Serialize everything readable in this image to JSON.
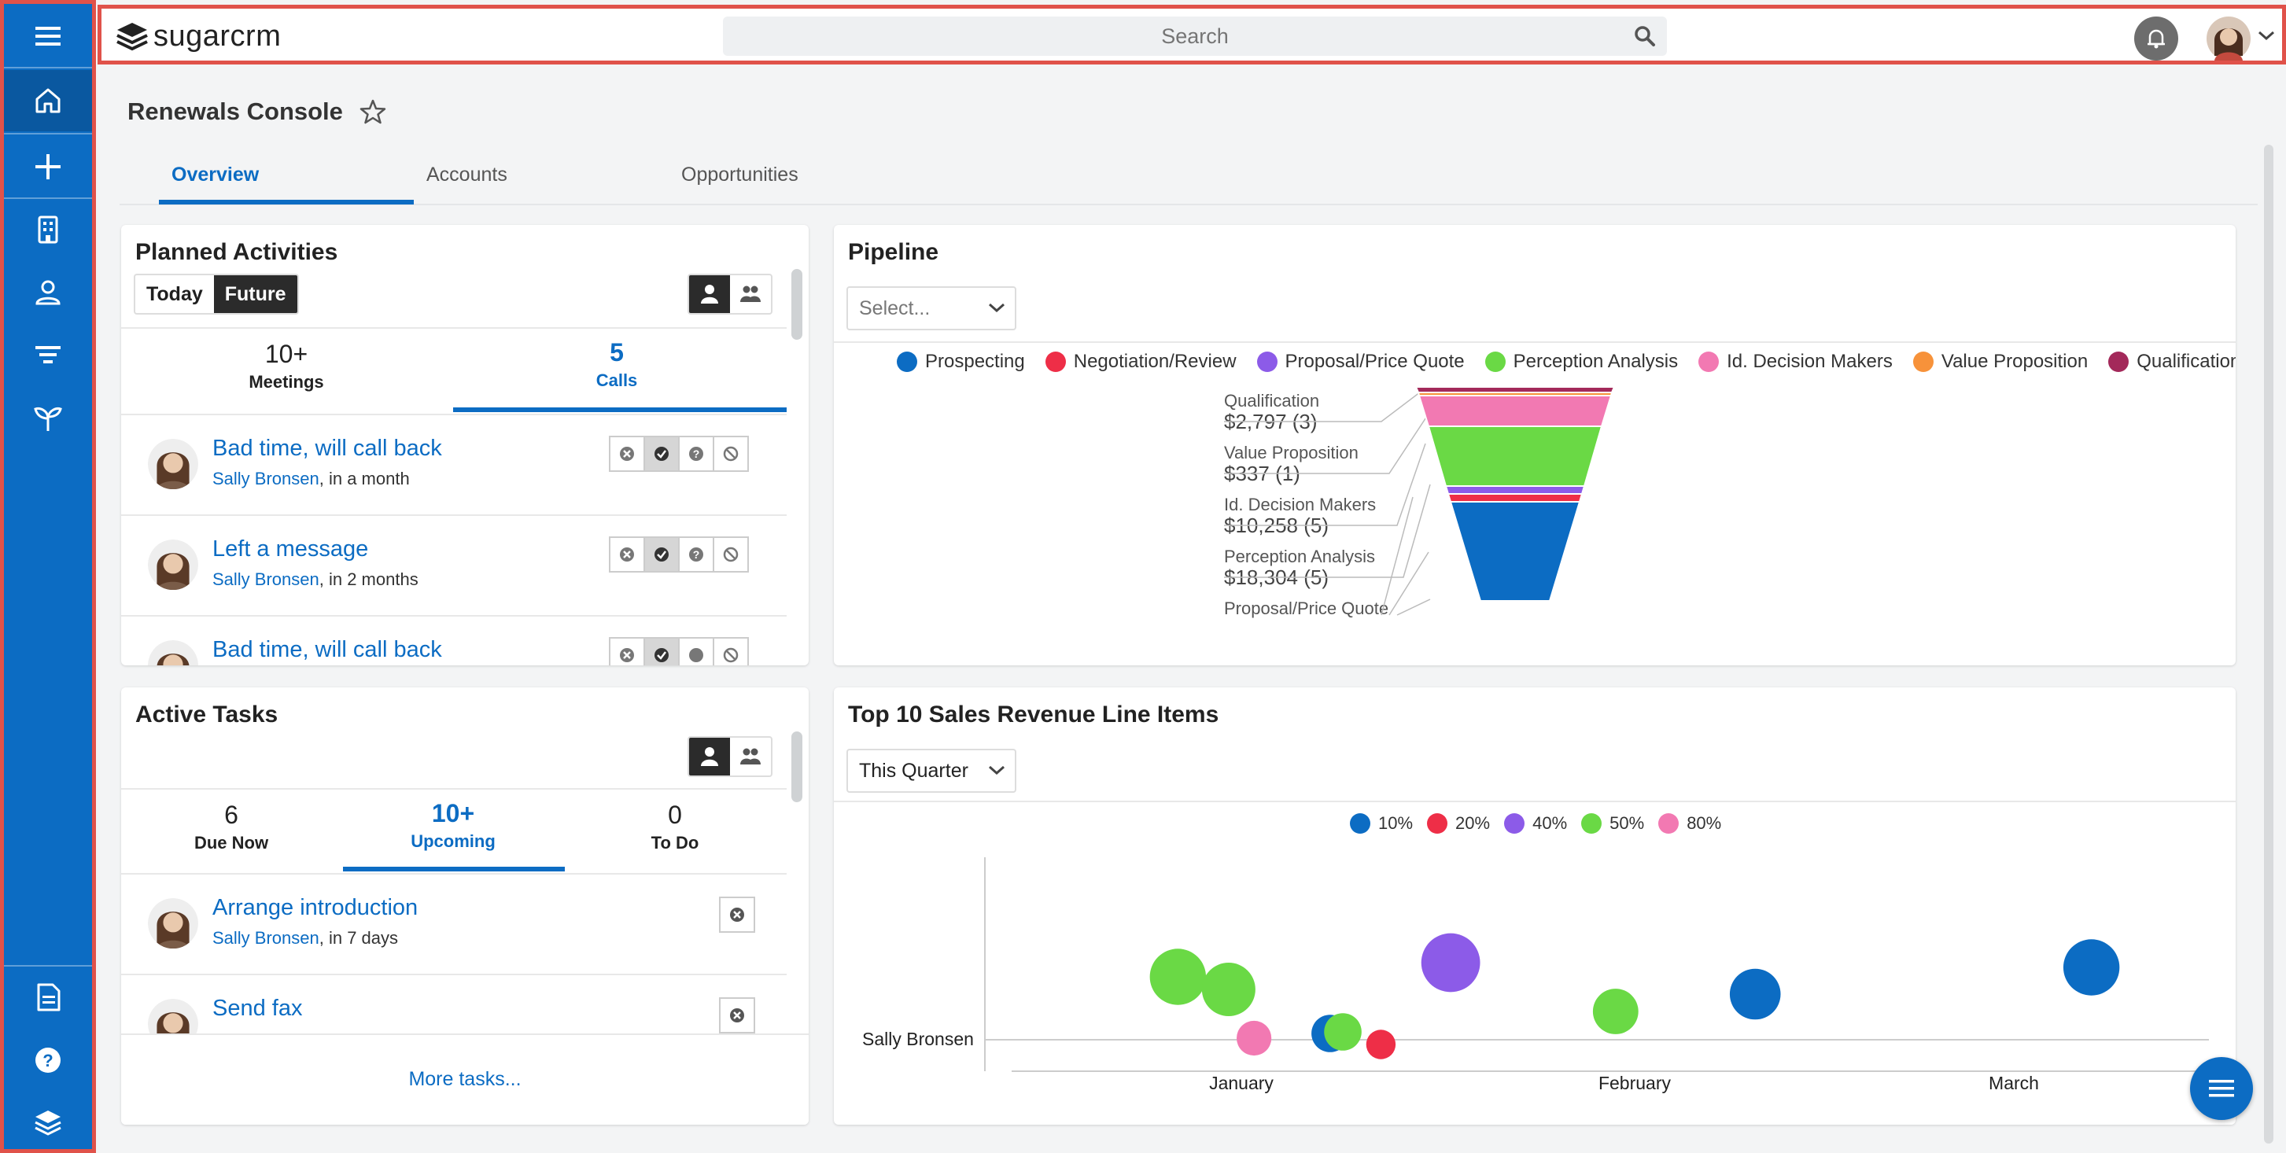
{
  "app": {
    "logo_text": "sugarcrm"
  },
  "search": {
    "placeholder": "Search"
  },
  "sidebar": {
    "items": [
      {
        "icon": "menu-icon"
      },
      {
        "icon": "home-icon"
      },
      {
        "icon": "plus-icon"
      },
      {
        "icon": "building-icon"
      },
      {
        "icon": "contact-icon"
      },
      {
        "icon": "filter-icon"
      },
      {
        "icon": "sprout-icon"
      },
      {
        "icon": "document-icon"
      },
      {
        "icon": "help-icon"
      },
      {
        "icon": "layers-icon"
      }
    ]
  },
  "page": {
    "title": "Renewals Console"
  },
  "tabs": [
    {
      "label": "Overview",
      "active": true
    },
    {
      "label": "Accounts"
    },
    {
      "label": "Opportunities"
    }
  ],
  "planned": {
    "title": "Planned Activities",
    "toggle": [
      "Today",
      "Future"
    ],
    "counters": [
      {
        "num": "10+",
        "label": "Meetings"
      },
      {
        "num": "5",
        "label": "Calls"
      }
    ],
    "rows": [
      {
        "title": "Bad time, will call back",
        "contact": "Sally Bronsen",
        "when": ", in a month"
      },
      {
        "title": "Left a message",
        "contact": "Sally Bronsen",
        "when": ", in 2 months"
      },
      {
        "title": "Bad time, will call back"
      }
    ]
  },
  "tasks": {
    "title": "Active Tasks",
    "counters": [
      {
        "num": "6",
        "label": "Due Now"
      },
      {
        "num": "10+",
        "label": "Upcoming"
      },
      {
        "num": "0",
        "label": "To Do"
      }
    ],
    "rows": [
      {
        "title": "Arrange introduction",
        "contact": "Sally Bronsen",
        "when": ", in 7 days"
      },
      {
        "title": "Send fax"
      }
    ],
    "more": "More tasks..."
  },
  "pipeline": {
    "title": "Pipeline",
    "select_placeholder": "Select...",
    "legend": [
      {
        "name": "Prospecting",
        "color": "#0c6cc3"
      },
      {
        "name": "Negotiation/Review",
        "color": "#ee2e47"
      },
      {
        "name": "Proposal/Price Quote",
        "color": "#8c5be8"
      },
      {
        "name": "Perception Analysis",
        "color": "#6ad945"
      },
      {
        "name": "Id. Decision Makers",
        "color": "#f279b2"
      },
      {
        "name": "Value Proposition",
        "color": "#f7923a"
      },
      {
        "name": "Qualification",
        "color": "#a3295a"
      }
    ],
    "labels": [
      {
        "name": "Qualification",
        "value": "$2,797 (3)"
      },
      {
        "name": "Value Proposition",
        "value": "$337 (1)"
      },
      {
        "name": "Id. Decision Makers",
        "value": "$10,258 (5)"
      },
      {
        "name": "Perception Analysis",
        "value": "$18,304 (5)"
      },
      {
        "name": "Proposal/Price Quote",
        "value": ""
      }
    ]
  },
  "revenue": {
    "title": "Top 10 Sales Revenue Line Items",
    "select_value": "This Quarter",
    "legend": [
      {
        "name": "10%",
        "color": "#0c6cc3"
      },
      {
        "name": "20%",
        "color": "#ee2e47"
      },
      {
        "name": "40%",
        "color": "#8c5be8"
      },
      {
        "name": "50%",
        "color": "#6ad945"
      },
      {
        "name": "80%",
        "color": "#f279b2"
      }
    ],
    "y_label": "Sally Bronsen",
    "x_labels": [
      "January",
      "February",
      "March"
    ]
  },
  "chart_data": {
    "type": "scatter",
    "title": "Top 10 Sales Revenue Line Items",
    "series": [
      {
        "name": "10%",
        "points": [
          {
            "x": "Jan 22",
            "size": 28
          },
          {
            "x": "Feb 25",
            "size": 38
          },
          {
            "x": "Mar 21",
            "size": 42
          }
        ]
      },
      {
        "name": "20%",
        "points": [
          {
            "x": "Jan 26",
            "size": 22
          }
        ]
      },
      {
        "name": "40%",
        "points": [
          {
            "x": "Feb 1",
            "size": 44
          }
        ]
      },
      {
        "name": "50%",
        "points": [
          {
            "x": "Jan 10",
            "size": 42
          },
          {
            "x": "Jan 14",
            "size": 40
          },
          {
            "x": "Jan 23",
            "size": 28
          },
          {
            "x": "Feb 14",
            "size": 34
          }
        ]
      },
      {
        "name": "80%",
        "points": [
          {
            "x": "Jan 16",
            "size": 26
          }
        ]
      }
    ]
  }
}
